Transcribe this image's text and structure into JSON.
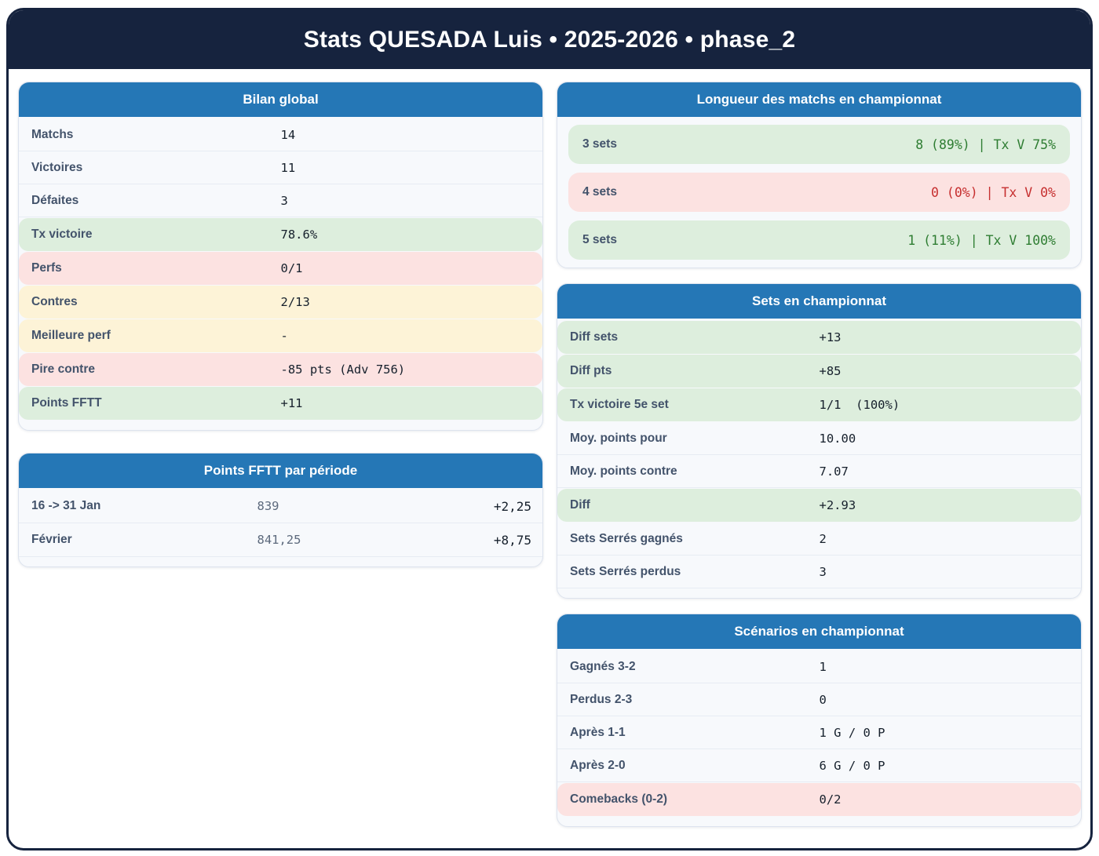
{
  "header": {
    "title": "Stats QUESADA Luis • 2025-2026 • phase_2"
  },
  "colors": {
    "navy": "#16233e",
    "blue": "#2577b6",
    "green_bg": "#ddeedd",
    "green_text": "#2e7d32",
    "pink_bg": "#fce2e1",
    "red_text": "#c62f2f",
    "cream_bg": "#fdf3d7"
  },
  "cards": {
    "bilan": {
      "title": "Bilan global",
      "rows": [
        {
          "label": "Matchs",
          "value": "14",
          "variant": "plain"
        },
        {
          "label": "Victoires",
          "value": "11",
          "variant": "plain"
        },
        {
          "label": "Défaites",
          "value": "3",
          "variant": "plain"
        },
        {
          "label": "Tx victoire",
          "value": "78.6%",
          "variant": "green"
        },
        {
          "label": "Perfs",
          "value": "0/1",
          "variant": "pink"
        },
        {
          "label": "Contres",
          "value": "2/13",
          "variant": "cream"
        },
        {
          "label": "Meilleure perf",
          "value": "-",
          "variant": "cream"
        },
        {
          "label": "Pire contre",
          "value": "-85 pts (Adv 756)",
          "variant": "pink"
        },
        {
          "label": "Points FFTT",
          "value": "+11",
          "variant": "green"
        }
      ]
    },
    "points_periode": {
      "title": "Points FFTT par période",
      "rows": [
        {
          "label": "16 -> 31 Jan",
          "points": "839",
          "delta": "+2,25"
        },
        {
          "label": "Février",
          "points": "841,25",
          "delta": "+8,75"
        }
      ]
    },
    "longueur": {
      "title": "Longueur des matchs en championnat",
      "rows": [
        {
          "label": "3 sets",
          "value": "8 (89%) | Tx V 75%",
          "variant": "green"
        },
        {
          "label": "4 sets",
          "value": "0 (0%) | Tx V 0%",
          "variant": "pink"
        },
        {
          "label": "5 sets",
          "value": "1 (11%) | Tx V 100%",
          "variant": "green"
        }
      ]
    },
    "sets": {
      "title": "Sets en championnat",
      "rows": [
        {
          "label": "Diff sets",
          "value": "+13",
          "variant": "green"
        },
        {
          "label": "Diff pts",
          "value": "+85",
          "variant": "green"
        },
        {
          "label": "Tx victoire 5e set",
          "value": "1/1  (100%)",
          "variant": "green"
        },
        {
          "label": "Moy. points pour",
          "value": "10.00",
          "variant": "plain"
        },
        {
          "label": "Moy. points contre",
          "value": "7.07",
          "variant": "plain"
        },
        {
          "label": "Diff",
          "value": "+2.93",
          "variant": "green"
        },
        {
          "label": "Sets Serrés gagnés",
          "value": "2",
          "variant": "plain"
        },
        {
          "label": "Sets Serrés perdus",
          "value": "3",
          "variant": "plain"
        }
      ]
    },
    "scenarios": {
      "title": "Scénarios en championnat",
      "rows": [
        {
          "label": "Gagnés 3-2",
          "value": "1",
          "variant": "plain"
        },
        {
          "label": "Perdus 2-3",
          "value": "0",
          "variant": "plain"
        },
        {
          "label": "Après 1-1",
          "value": "1 G / 0 P",
          "variant": "plain"
        },
        {
          "label": "Après 2-0",
          "value": "6 G / 0 P",
          "variant": "plain"
        },
        {
          "label": "Comebacks (0-2)",
          "value": "0/2",
          "variant": "pink"
        }
      ]
    }
  }
}
